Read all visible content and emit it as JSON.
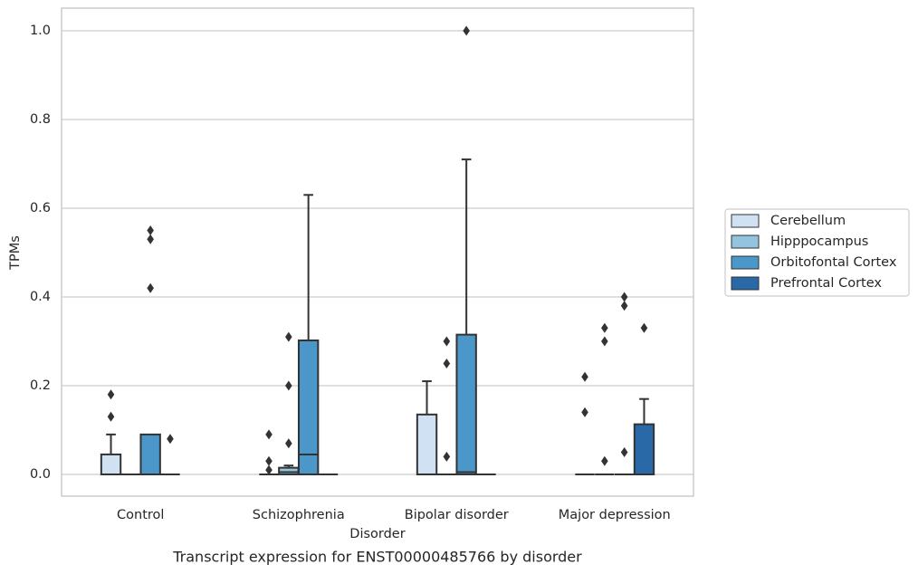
{
  "chart_data": {
    "type": "box",
    "title": "Transcript expression for ENST00000485766 by disorder",
    "x_label": "Disorder",
    "y_label": "TPMs",
    "categories": [
      "Control",
      "Schizophrenia",
      "Bipolar disorder",
      "Major depression"
    ],
    "ylim": [
      -0.049,
      1.051
    ],
    "yticks": [
      {
        "value": 0,
        "label": "0.0"
      },
      0.2,
      0.4,
      0.6,
      0.8,
      {
        "value": 1,
        "label": "1.0"
      }
    ],
    "grid": true,
    "legend": "right",
    "series": [
      {
        "name": "Cerebellum",
        "color": "#cfe1f2",
        "boxes": [
          {
            "q1": 0,
            "median": 0,
            "q3": 0.045,
            "whislo": 0,
            "whishi": 0.09,
            "fliers": [
              0.13,
              0.18
            ]
          },
          {
            "q1": 0,
            "median": 0,
            "q3": 0,
            "whislo": 0,
            "whishi": 0,
            "fliers": [
              0.01,
              0.03,
              0.09
            ]
          },
          {
            "q1": 0,
            "median": 0,
            "q3": 0.135,
            "whislo": 0,
            "whishi": 0.21,
            "fliers": []
          },
          {
            "q1": 0,
            "median": 0,
            "q3": 0,
            "whislo": 0,
            "whishi": 0,
            "fliers": [
              0.14,
              0.22
            ]
          }
        ]
      },
      {
        "name": "Hipppocampus",
        "color": "#93c3df",
        "boxes": [
          {
            "q1": 0,
            "median": 0,
            "q3": 0,
            "whislo": 0,
            "whishi": 0,
            "fliers": []
          },
          {
            "q1": 0,
            "median": 0.005,
            "q3": 0.015,
            "whislo": 0,
            "whishi": 0.02,
            "fliers": [
              0.07,
              0.2,
              0.31
            ]
          },
          {
            "q1": 0,
            "median": 0,
            "q3": 0,
            "whislo": 0,
            "whishi": 0,
            "fliers": [
              0.04,
              0.25,
              0.3
            ]
          },
          {
            "q1": 0,
            "median": 0,
            "q3": 0,
            "whislo": 0,
            "whishi": 0,
            "fliers": [
              0.03,
              0.3,
              0.33
            ]
          }
        ]
      },
      {
        "name": "Orbitofontal Cortex",
        "color": "#4b97c9",
        "boxes": [
          {
            "q1": 0,
            "median": 0,
            "q3": 0.09,
            "whislo": 0,
            "whishi": 0.09,
            "fliers": [
              0.42,
              0.53,
              0.55
            ]
          },
          {
            "q1": 0,
            "median": 0.045,
            "q3": 0.302,
            "whislo": 0,
            "whishi": 0.63,
            "fliers": []
          },
          {
            "q1": 0,
            "median": 0.005,
            "q3": 0.315,
            "whislo": 0,
            "whishi": 0.71,
            "fliers": [
              1
            ]
          },
          {
            "q1": 0,
            "median": 0,
            "q3": 0,
            "whislo": 0,
            "whishi": 0,
            "fliers": [
              0.05,
              0.38,
              0.4
            ]
          }
        ]
      },
      {
        "name": "Prefrontal Cortex",
        "color": "#2a69a8",
        "boxes": [
          {
            "q1": 0,
            "median": 0,
            "q3": 0,
            "whislo": 0,
            "whishi": 0,
            "fliers": [
              0.08
            ]
          },
          {
            "q1": 0,
            "median": 0,
            "q3": 0,
            "whislo": 0,
            "whishi": 0,
            "fliers": []
          },
          {
            "q1": 0,
            "median": 0,
            "q3": 0,
            "whislo": 0,
            "whishi": 0,
            "fliers": []
          },
          {
            "q1": 0,
            "median": 0,
            "q3": 0.113,
            "whislo": 0,
            "whishi": 0.17,
            "fliers": [
              0.33
            ]
          }
        ]
      }
    ]
  }
}
